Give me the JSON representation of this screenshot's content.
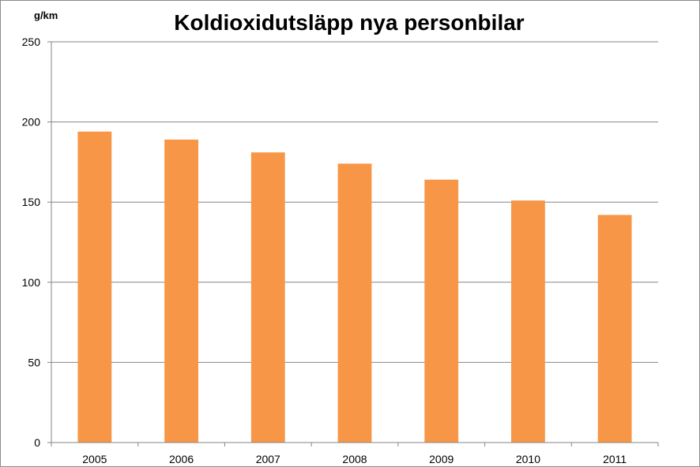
{
  "chart_data": {
    "type": "bar",
    "title": "Koldioxidutsläpp nya personbilar",
    "ylabel": "g/km",
    "xlabel": "",
    "categories": [
      "2005",
      "2006",
      "2007",
      "2008",
      "2009",
      "2010",
      "2011"
    ],
    "values": [
      194,
      189,
      181,
      174,
      164,
      151,
      142
    ],
    "ylim": [
      0,
      250
    ],
    "yticks": [
      "0",
      "50",
      "100",
      "150",
      "200",
      "250"
    ],
    "grid": true,
    "legend": "none",
    "colors": {
      "bar": "#F79646",
      "grid": "#868686",
      "axis": "#868686"
    }
  }
}
